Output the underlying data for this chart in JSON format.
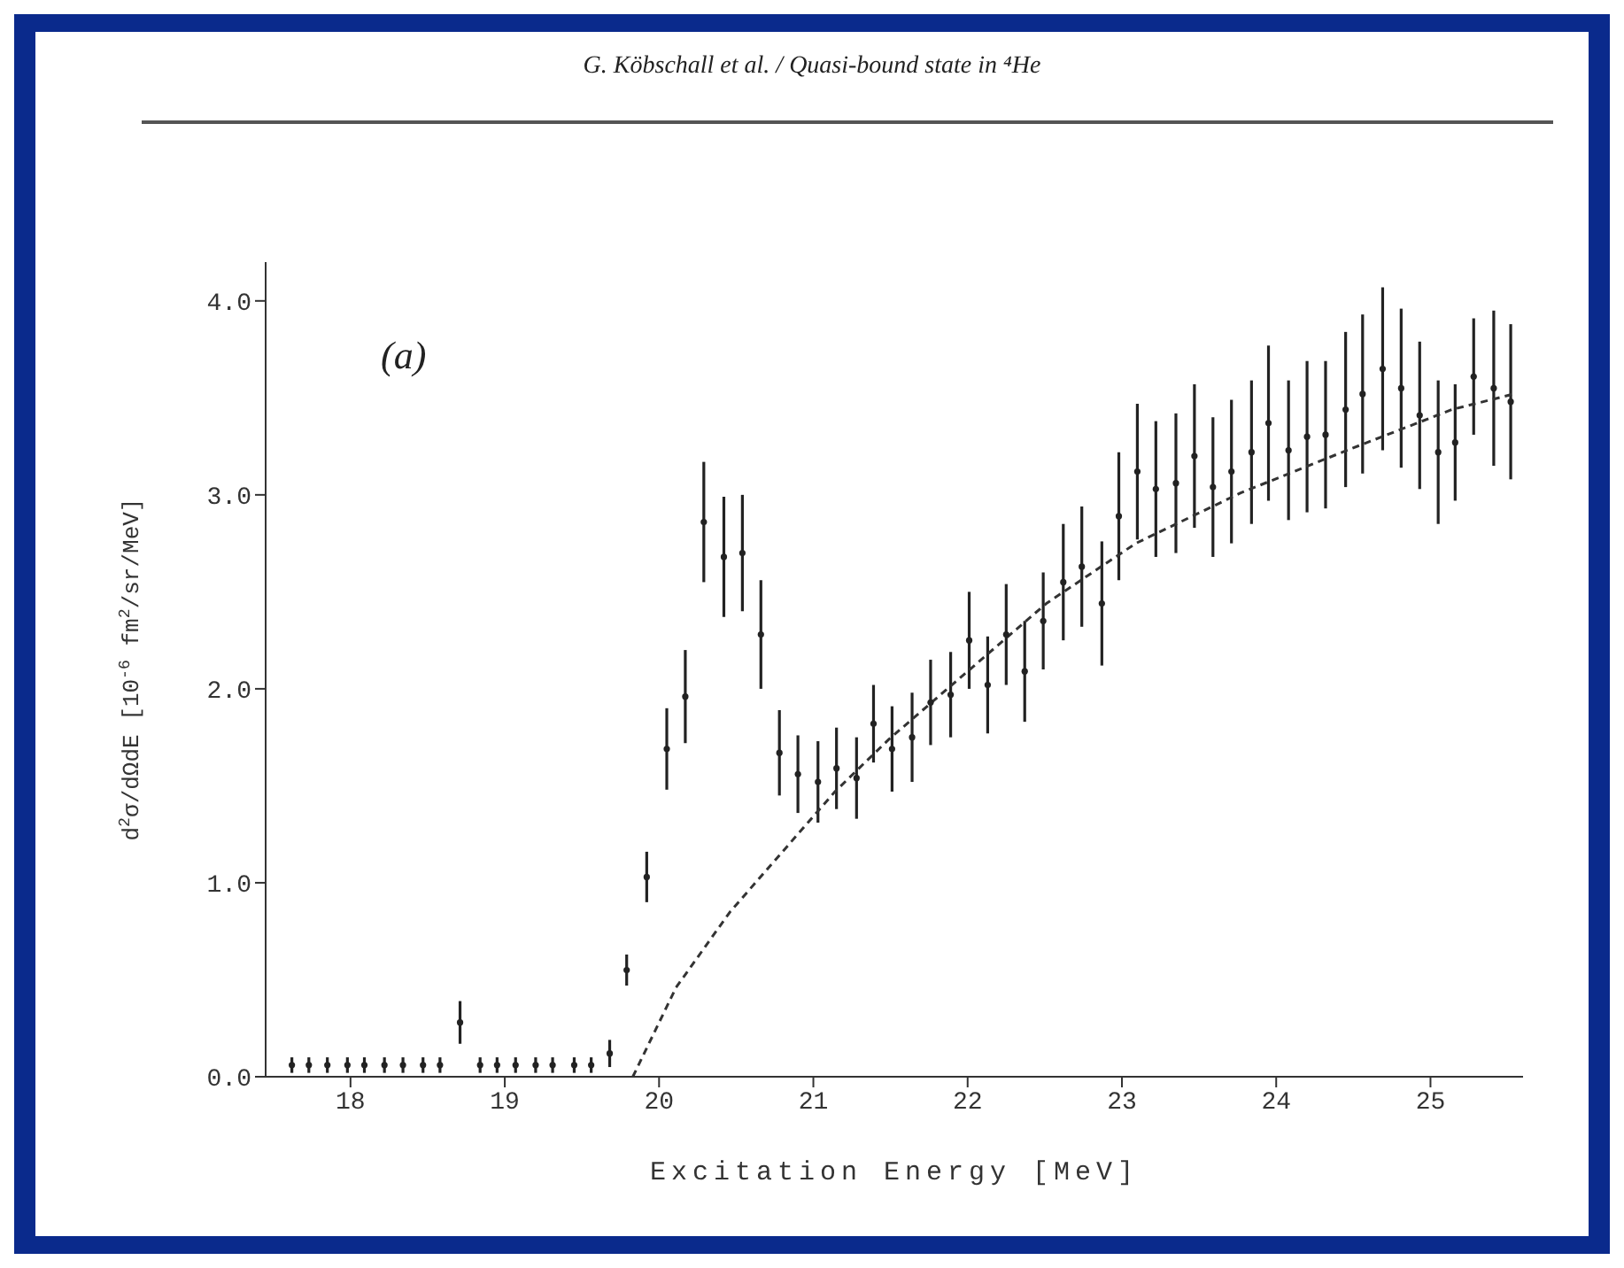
{
  "chart_data": {
    "type": "scatter",
    "title": "G. Köbschall et al. / Quasi-bound state in ⁴He",
    "xlabel": "Excitation Energy [MeV]",
    "ylabel": "d$^{2}$σ/dΩdE [10$^{-6}$ fm$^{2}$/sr/MeV]",
    "annotations": [
      "(a)"
    ],
    "xlim": [
      17.45,
      25.6
    ],
    "xticks": [
      18,
      19,
      20,
      21,
      22,
      23,
      24,
      25
    ],
    "ylim": [
      0,
      4.2
    ],
    "yticks": [
      {
        "value": 0,
        "label": "0.0"
      },
      {
        "value": 1,
        "label": "1.0"
      },
      {
        "value": 2,
        "label": "2.0"
      },
      {
        "value": 3,
        "label": "3.0"
      },
      {
        "value": 4,
        "label": "4.0"
      }
    ],
    "grid": false,
    "legend": false,
    "marker": "circle",
    "series": [
      {
        "color": "#222222",
        "x": [
          17.62,
          17.73,
          17.85,
          17.98,
          18.09,
          18.22,
          18.34,
          18.47,
          18.58,
          18.71,
          18.84,
          18.95,
          19.07,
          19.2,
          19.31,
          19.45,
          19.56,
          19.68,
          19.79,
          19.92,
          20.05,
          20.17,
          20.29,
          20.42,
          20.54,
          20.66,
          20.78,
          20.9,
          21.03,
          21.15,
          21.28,
          21.39,
          21.51,
          21.64,
          21.76,
          21.89,
          22.01,
          22.13,
          22.25,
          22.37,
          22.49,
          22.62,
          22.74,
          22.87,
          22.98,
          23.1,
          23.22,
          23.35,
          23.47,
          23.59,
          23.71,
          23.84,
          23.95,
          24.08,
          24.2,
          24.32,
          24.45,
          24.56,
          24.69,
          24.81,
          24.93,
          25.05,
          25.16,
          25.28,
          25.41,
          25.52
        ],
        "values": [
          0.06,
          0.06,
          0.06,
          0.06,
          0.06,
          0.06,
          0.06,
          0.06,
          0.06,
          0.28,
          0.06,
          0.06,
          0.06,
          0.06,
          0.06,
          0.06,
          0.06,
          0.12,
          0.55,
          1.03,
          1.69,
          1.96,
          2.86,
          2.68,
          2.7,
          2.28,
          1.67,
          1.56,
          1.52,
          1.59,
          1.54,
          1.82,
          1.69,
          1.75,
          1.93,
          1.97,
          2.25,
          2.02,
          2.28,
          2.09,
          2.35,
          2.55,
          2.63,
          2.44,
          2.89,
          3.12,
          3.03,
          3.06,
          3.2,
          3.04,
          3.12,
          3.22,
          3.37,
          3.23,
          3.3,
          3.31,
          3.44,
          3.52,
          3.65,
          3.55,
          3.41,
          3.22,
          3.27,
          3.61,
          3.55,
          3.48
        ],
        "errors": [
          0.04,
          0.04,
          0.04,
          0.04,
          0.04,
          0.04,
          0.04,
          0.04,
          0.04,
          0.11,
          0.04,
          0.04,
          0.04,
          0.04,
          0.04,
          0.04,
          0.04,
          0.07,
          0.08,
          0.13,
          0.21,
          0.24,
          0.31,
          0.31,
          0.3,
          0.28,
          0.22,
          0.2,
          0.21,
          0.21,
          0.21,
          0.2,
          0.22,
          0.23,
          0.22,
          0.22,
          0.25,
          0.25,
          0.26,
          0.26,
          0.25,
          0.3,
          0.31,
          0.32,
          0.33,
          0.35,
          0.35,
          0.36,
          0.37,
          0.36,
          0.37,
          0.37,
          0.4,
          0.36,
          0.39,
          0.38,
          0.4,
          0.41,
          0.42,
          0.41,
          0.38,
          0.37,
          0.3,
          0.3,
          0.4,
          0.4
        ]
      },
      {
        "type": "line",
        "color": "#333333",
        "line_style": "dashed",
        "marker": "none",
        "x": [
          19.83,
          20.11,
          20.46,
          20.8,
          21.14,
          21.49,
          22.0,
          22.51,
          23.09,
          23.77,
          24.46,
          25.14,
          25.54
        ],
        "values": [
          0,
          0.46,
          0.85,
          1.16,
          1.47,
          1.74,
          2.09,
          2.44,
          2.75,
          3.01,
          3.23,
          3.44,
          3.52
        ]
      }
    ]
  }
}
